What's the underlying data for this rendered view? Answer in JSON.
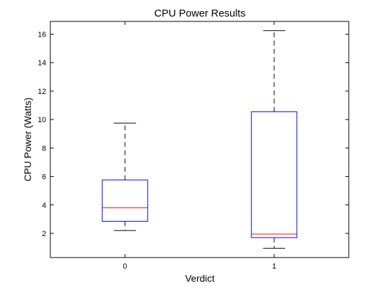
{
  "chart_data": {
    "type": "boxplot",
    "title": "CPU Power Results",
    "xlabel": "Verdict",
    "ylabel": "CPU Power (Watts)",
    "ylim": [
      0.3,
      16.9
    ],
    "yticks": [
      2,
      4,
      6,
      8,
      10,
      12,
      14,
      16
    ],
    "ytick_labels": [
      "2",
      "4",
      "6",
      "8",
      "10",
      "12",
      "14",
      "16"
    ],
    "grid": false,
    "categories": [
      "0",
      "1"
    ],
    "boxes": [
      {
        "category": "0",
        "whisker_low": 2.2,
        "q1": 2.85,
        "median": 3.8,
        "q3": 5.75,
        "whisker_high": 9.75
      },
      {
        "category": "1",
        "whisker_low": 0.95,
        "q1": 1.7,
        "median": 1.95,
        "q3": 10.55,
        "whisker_high": 16.25
      }
    ],
    "colors": {
      "box": "#0000ff",
      "median": "#ff0000",
      "whisker": "#000000"
    }
  }
}
